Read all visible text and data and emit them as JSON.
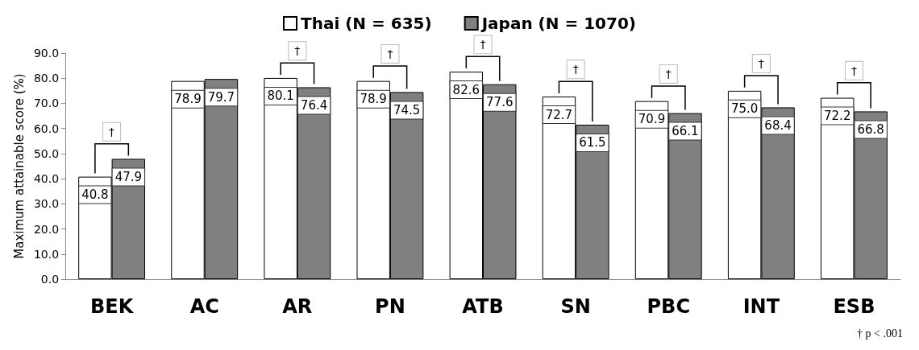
{
  "chart_data": {
    "type": "bar",
    "ylabel": "Maximum attainable score (%)",
    "categories": [
      "BEK",
      "AC",
      "AR",
      "PN",
      "ATB",
      "SN",
      "PBC",
      "INT",
      "ESB"
    ],
    "series": [
      {
        "name": "Thai (N = 635)",
        "color": "#ffffff",
        "values": [
          40.8,
          78.9,
          80.1,
          78.9,
          82.6,
          72.7,
          70.9,
          75.0,
          72.2
        ],
        "value_labels": [
          "40.8",
          "78.9",
          "80.1",
          "78.9",
          "82.6",
          "72.7",
          "70.9",
          "75.0",
          "72.2"
        ]
      },
      {
        "name": "Japan (N = 1070)",
        "color": "#808080",
        "values": [
          47.9,
          79.7,
          76.4,
          74.5,
          77.6,
          61.5,
          66.1,
          68.4,
          66.8
        ],
        "value_labels": [
          "47.9",
          "79.7",
          "76.4",
          "74.5",
          "77.6",
          "61.5",
          "66.1",
          "68.4",
          "66.8"
        ]
      }
    ],
    "ylim": [
      0,
      90
    ],
    "yticks": [
      {
        "value": 0,
        "label": "0.0"
      },
      {
        "value": 10,
        "label": "10.0"
      },
      {
        "value": 20,
        "label": "20.0"
      },
      {
        "value": 30,
        "label": "30.0"
      },
      {
        "value": 40,
        "label": "40.0"
      },
      {
        "value": 50,
        "label": "50.0"
      },
      {
        "value": 60,
        "label": "60.0"
      },
      {
        "value": 70,
        "label": "70.0"
      },
      {
        "value": 80,
        "label": "80.0"
      },
      {
        "value": 90,
        "label": "90.0"
      }
    ],
    "grid": false,
    "legend": "top",
    "annotations": [
      "†",
      "†",
      "†",
      "†",
      "†",
      "†",
      "†",
      "†",
      "† p < .001"
    ]
  }
}
